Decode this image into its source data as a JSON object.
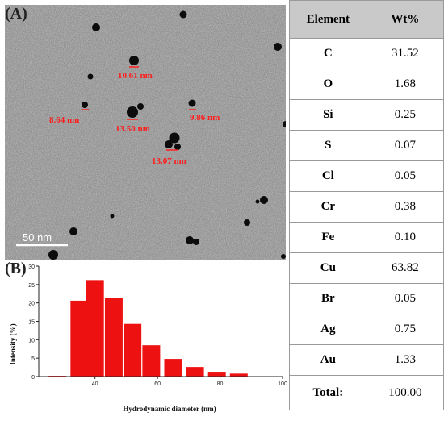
{
  "panel_a": {
    "label": "(A)",
    "scale_bar": "50 nm",
    "annotations": [
      {
        "text": "10.61 nm"
      },
      {
        "text": "8.64 nm"
      },
      {
        "text": "13.50 nm"
      },
      {
        "text": "9.86 nm"
      },
      {
        "text": "13.07 nm"
      }
    ]
  },
  "panel_b": {
    "label": "(B)"
  },
  "chart_data": {
    "type": "bar",
    "title": "",
    "xlabel": "Hydrodynamic diameter (nm)",
    "ylabel": "Intensity (%)",
    "x": [
      28,
      35,
      40,
      46,
      52,
      58,
      65,
      72,
      79,
      86,
      93
    ],
    "values": [
      0.2,
      20.6,
      26.2,
      21.3,
      14.3,
      8.5,
      4.8,
      2.6,
      1.3,
      0.8,
      0.1
    ],
    "xlim": [
      22,
      100
    ],
    "ylim": [
      0,
      30
    ],
    "xticks": [
      40,
      60,
      80,
      100
    ],
    "yticks": [
      0,
      5,
      10,
      15,
      20,
      25,
      30
    ],
    "bar_color": "#ee1111"
  },
  "table": {
    "headers": [
      "Element",
      "Wt%"
    ],
    "rows": [
      {
        "element": "C",
        "value": "31.52"
      },
      {
        "element": "O",
        "value": "1.68"
      },
      {
        "element": "Si",
        "value": "0.25"
      },
      {
        "element": "S",
        "value": "0.07"
      },
      {
        "element": "Cl",
        "value": "0.05"
      },
      {
        "element": "Cr",
        "value": "0.38"
      },
      {
        "element": "Fe",
        "value": "0.10"
      },
      {
        "element": "Cu",
        "value": "63.82"
      },
      {
        "element": "Br",
        "value": "0.05"
      },
      {
        "element": "Ag",
        "value": "0.75"
      },
      {
        "element": "Au",
        "value": "1.33"
      }
    ],
    "total_label": "Total:",
    "total_value": "100.00"
  }
}
